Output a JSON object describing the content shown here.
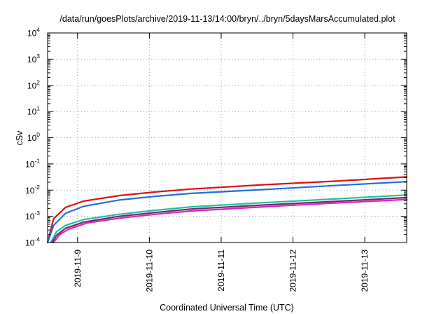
{
  "chart_data": {
    "type": "line",
    "title": "/data/run/goesPlots/archive/2019-11-13/14:00/bryn/../bryn/5daysMarsAccumulated.plot",
    "xlabel": "Coordinated Universal Time (UTC)",
    "ylabel": "cSv",
    "x_axis": {
      "type": "date",
      "range": [
        "2019-11-08 14:00",
        "2019-11-13 14:00"
      ],
      "ticks": [
        "2019-11-9",
        "2019-11-10",
        "2019-11-11",
        "2019-11-12",
        "2019-11-13"
      ]
    },
    "y_axis": {
      "scale": "log",
      "range": [
        0.0001,
        10000
      ],
      "tick_base": "10",
      "tick_exponents": [
        "-4",
        "-3",
        "-2",
        "-1",
        "0",
        "1",
        "2",
        "3",
        "4"
      ]
    },
    "grid": true,
    "legend": "none",
    "series": [
      {
        "color": "#e01010",
        "x": [
          "2019-11-08 14:00",
          "2019-11-08 16:00",
          "2019-11-08 20:00",
          "2019-11-09 02:00",
          "2019-11-09 14:00",
          "2019-11-10 02:00",
          "2019-11-10 14:00",
          "2019-11-11 14:00",
          "2019-11-12 14:00",
          "2019-11-13 14:00"
        ],
        "y": [
          0.0001,
          0.0008,
          0.0022,
          0.0038,
          0.0062,
          0.0085,
          0.011,
          0.016,
          0.022,
          0.032
        ]
      },
      {
        "color": "#1f6fe0",
        "x": [
          "2019-11-08 14:00",
          "2019-11-08 16:00",
          "2019-11-08 20:00",
          "2019-11-09 02:00",
          "2019-11-09 14:00",
          "2019-11-10 02:00",
          "2019-11-10 14:00",
          "2019-11-11 14:00",
          "2019-11-12 14:00",
          "2019-11-13 14:00"
        ],
        "y": [
          0.0001,
          0.00045,
          0.0013,
          0.0024,
          0.0042,
          0.0058,
          0.0075,
          0.0105,
          0.015,
          0.021
        ]
      },
      {
        "color": "#20c0a0",
        "x": [
          "2019-11-08 15:00",
          "2019-11-08 17:00",
          "2019-11-08 20:00",
          "2019-11-09 02:00",
          "2019-11-09 14:00",
          "2019-11-10 02:00",
          "2019-11-10 14:00",
          "2019-11-11 14:00",
          "2019-11-12 14:00",
          "2019-11-13 14:00"
        ],
        "y": [
          0.0001,
          0.00026,
          0.00045,
          0.00075,
          0.0012,
          0.0017,
          0.0023,
          0.0033,
          0.0046,
          0.0065
        ]
      },
      {
        "color": "#6a3060",
        "x": [
          "2019-11-08 15:30",
          "2019-11-08 17:00",
          "2019-11-08 20:00",
          "2019-11-09 02:00",
          "2019-11-09 14:00",
          "2019-11-10 02:00",
          "2019-11-10 14:00",
          "2019-11-11 14:00",
          "2019-11-12 14:00",
          "2019-11-13 14:00"
        ],
        "y": [
          0.0001,
          0.00019,
          0.00035,
          0.0006,
          0.001,
          0.0014,
          0.0019,
          0.0027,
          0.0037,
          0.0052
        ]
      },
      {
        "color": "#e020c0",
        "x": [
          "2019-11-08 16:00",
          "2019-11-08 18:00",
          "2019-11-08 21:00",
          "2019-11-09 03:00",
          "2019-11-09 14:00",
          "2019-11-10 02:00",
          "2019-11-10 14:00",
          "2019-11-11 14:00",
          "2019-11-12 14:00",
          "2019-11-13 14:00"
        ],
        "y": [
          0.0001,
          0.0002,
          0.00032,
          0.00055,
          0.00085,
          0.0012,
          0.0016,
          0.0023,
          0.0032,
          0.0044
        ]
      }
    ]
  }
}
